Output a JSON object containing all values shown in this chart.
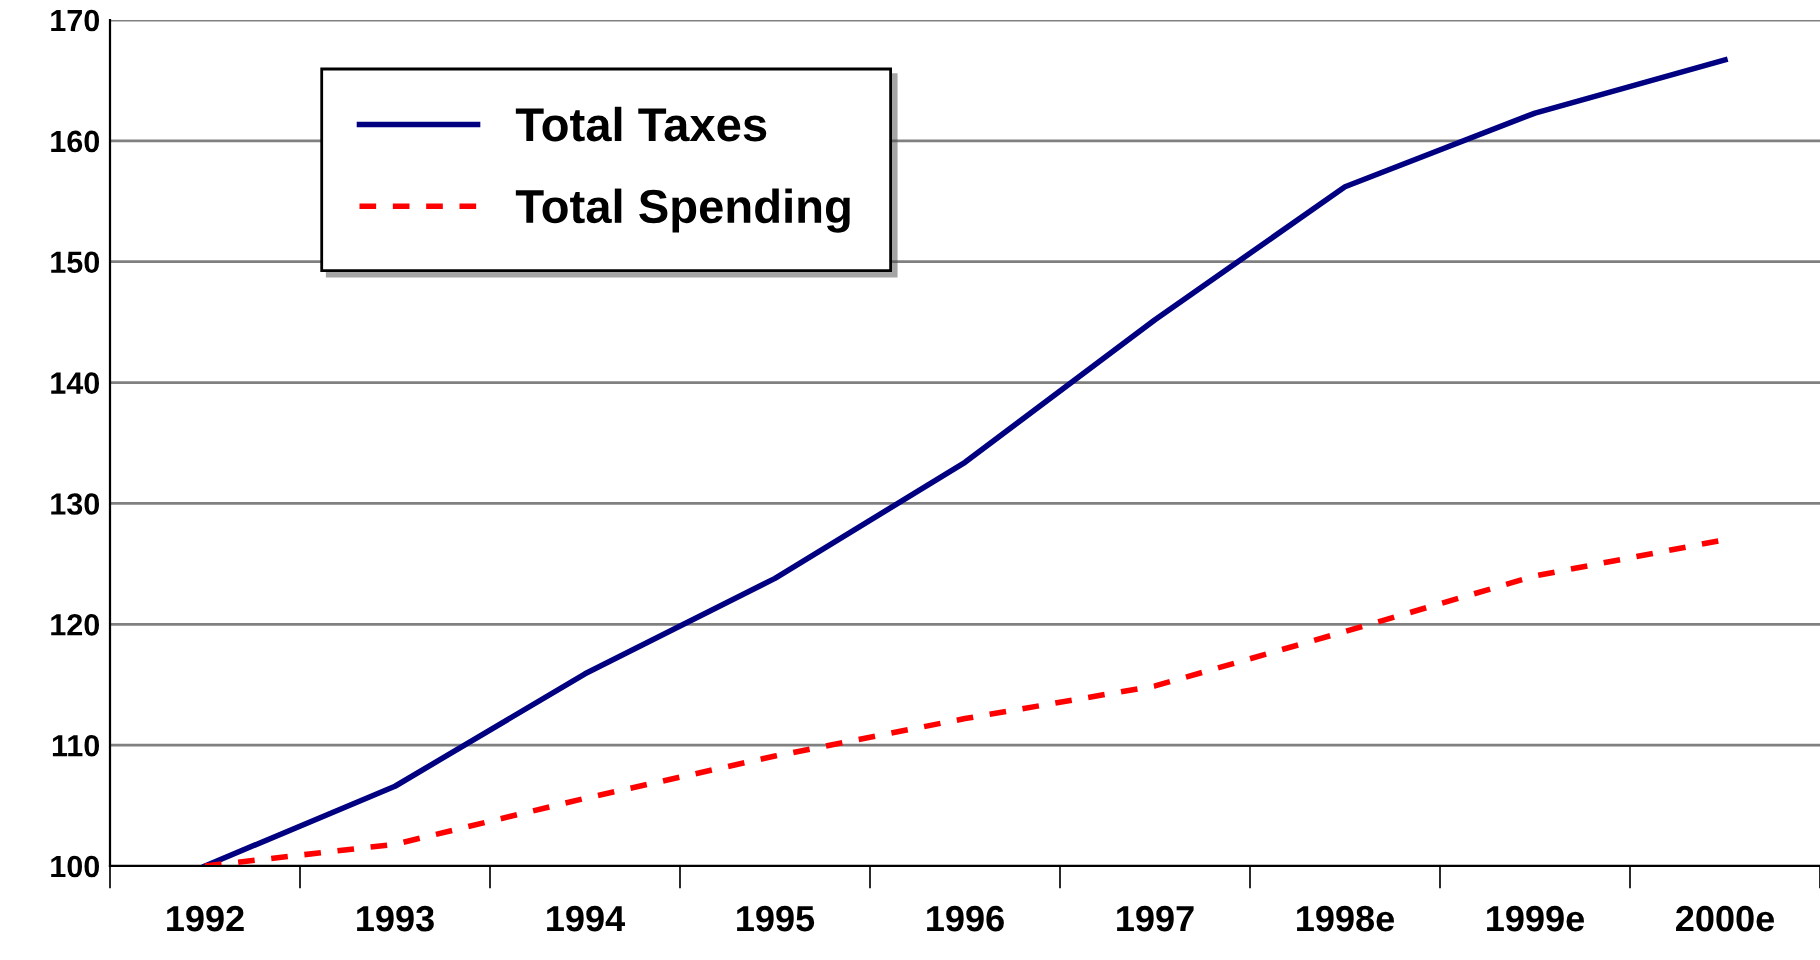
{
  "chart_data": {
    "type": "line",
    "categories": [
      "1992",
      "1993",
      "1994",
      "1995",
      "1996",
      "1997",
      "1998e",
      "1999e",
      "2000e"
    ],
    "series": [
      {
        "name": "Total Taxes",
        "color": "#000080",
        "line_style": "solid",
        "values": [
          100,
          106.6,
          115.9,
          123.8,
          133.4,
          145.2,
          156.2,
          162.3,
          166.7
        ]
      },
      {
        "name": "Total Spending",
        "color": "#ff0000",
        "line_style": "dashed",
        "values": [
          100,
          101.8,
          105.6,
          109.1,
          112.2,
          114.9,
          119.4,
          124.0,
          127.0
        ]
      }
    ],
    "ylim": [
      100,
      170
    ],
    "yticks": [
      100,
      110,
      120,
      130,
      140,
      150,
      160,
      170
    ],
    "grid": "y",
    "legend": "top left",
    "marker": "none"
  }
}
